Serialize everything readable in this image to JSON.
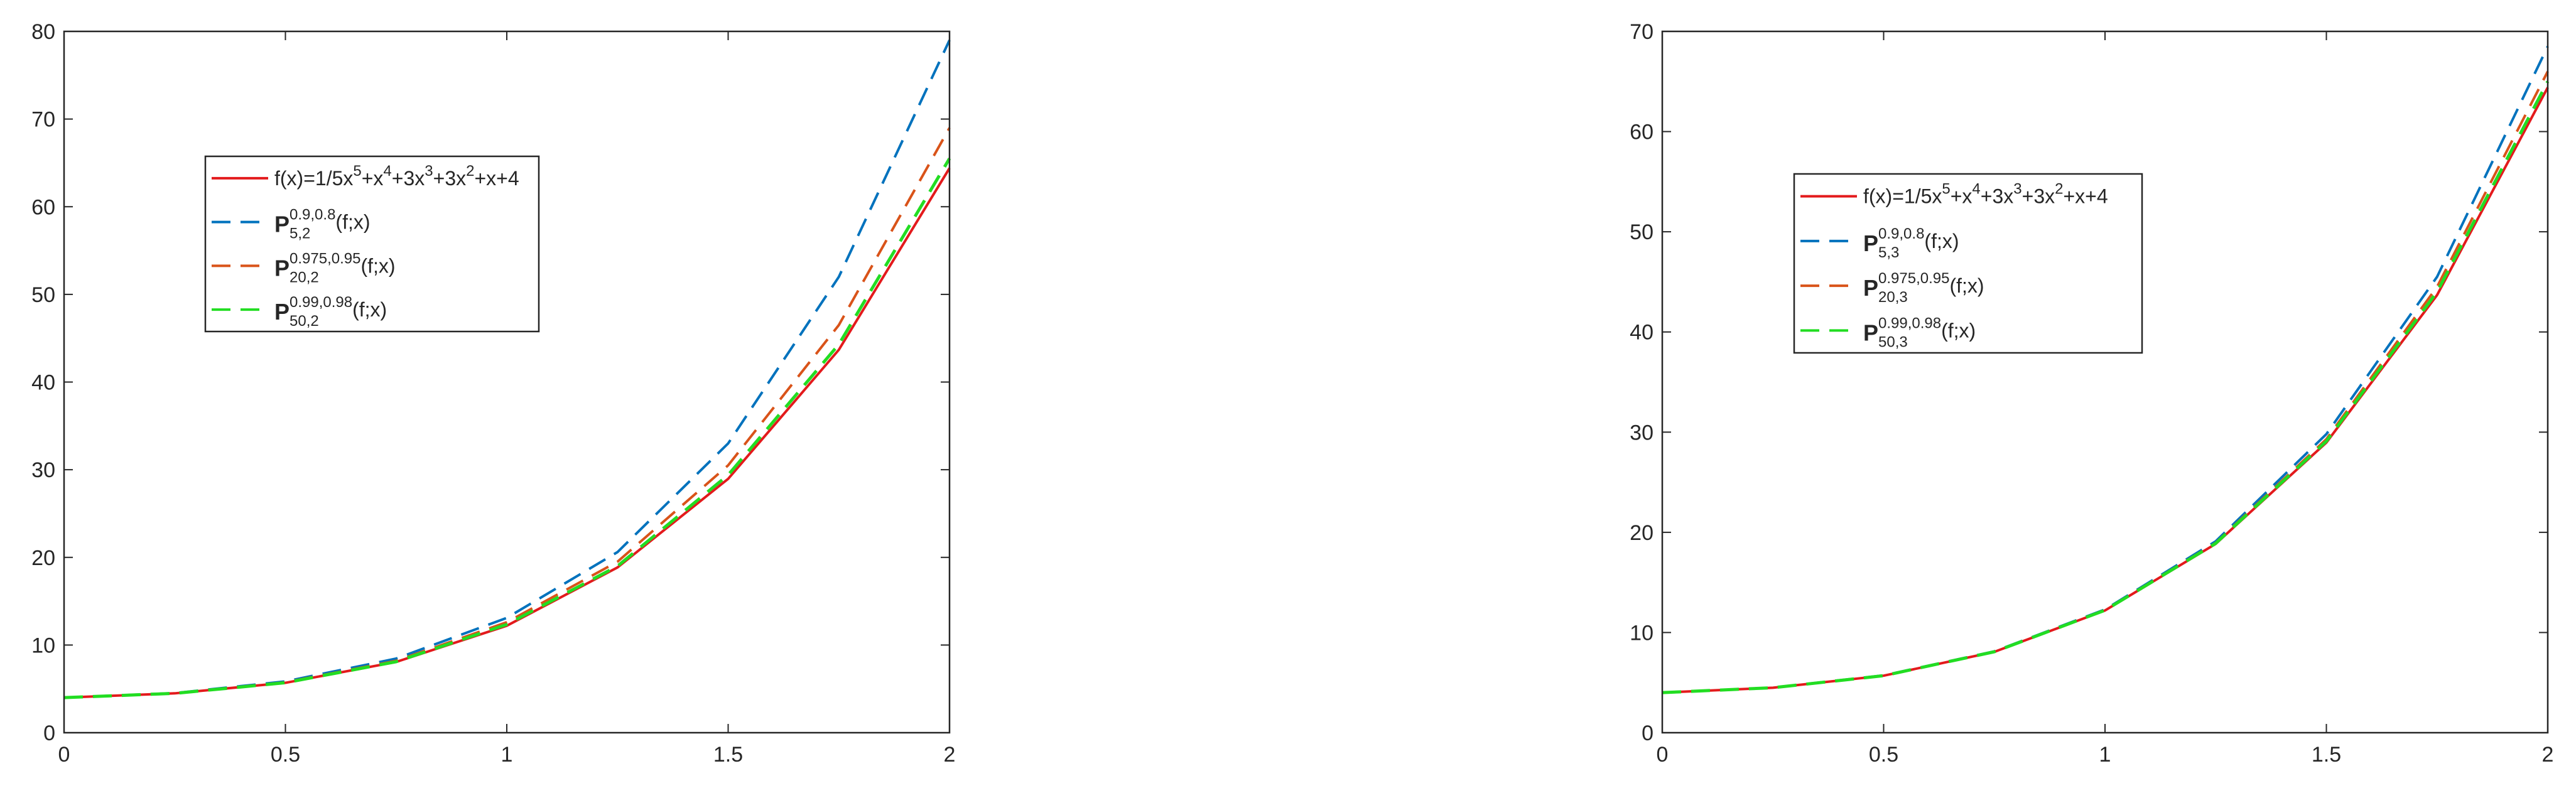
{
  "chart_data": [
    {
      "type": "line",
      "x": [
        0,
        0.25,
        0.5,
        0.75,
        1,
        1.25,
        1.5,
        1.75,
        2
      ],
      "xlim": [
        0,
        2
      ],
      "xticks": [
        0,
        0.5,
        1,
        1.5,
        2
      ],
      "ylim": [
        0,
        80
      ],
      "yticks": [
        0,
        10,
        20,
        30,
        40,
        50,
        60,
        70,
        80
      ],
      "series": [
        {
          "name": [
            {
              "text": "f(x)=1/5x"
            },
            {
              "sup": "5"
            },
            {
              "text": "+x"
            },
            {
              "sup": "4"
            },
            {
              "text": "+3x"
            },
            {
              "sup": "3"
            },
            {
              "text": "+3x"
            },
            {
              "sup": "2"
            },
            {
              "text": "+x+4"
            }
          ],
          "color": "#e31a1c",
          "style": "solid",
          "values": [
            4,
            4.49,
            5.69,
            8.07,
            12.2,
            18.85,
            28.96,
            43.68,
            64.4
          ]
        },
        {
          "name": [
            {
              "bold": "P"
            },
            {
              "sup": "0.9,0.8"
            },
            {
              "sub": "5,2"
            },
            {
              "text": "(f;x)"
            }
          ],
          "color": "#0072bd",
          "style": "dashed",
          "values": [
            4,
            4.52,
            5.85,
            8.45,
            13.1,
            20.6,
            33.0,
            52.0,
            79.0
          ]
        },
        {
          "name": [
            {
              "bold": "P"
            },
            {
              "sup": "0.975,0.95"
            },
            {
              "sub": "20,2"
            },
            {
              "text": "(f;x)"
            }
          ],
          "color": "#d95319",
          "style": "dashed",
          "values": [
            4,
            4.5,
            5.75,
            8.2,
            12.6,
            19.5,
            30.5,
            46.5,
            69.0
          ]
        },
        {
          "name": [
            {
              "bold": "P"
            },
            {
              "sup": "0.99,0.98"
            },
            {
              "sub": "50,2"
            },
            {
              "text": "(f;x)"
            }
          ],
          "color": "#22dd22",
          "style": "dashed",
          "values": [
            4,
            4.49,
            5.7,
            8.1,
            12.35,
            19.0,
            29.4,
            44.3,
            65.5
          ]
        }
      ]
    },
    {
      "type": "line",
      "x": [
        0,
        0.25,
        0.5,
        0.75,
        1,
        1.25,
        1.5,
        1.75,
        2
      ],
      "xlim": [
        0,
        2
      ],
      "xticks": [
        0,
        0.5,
        1,
        1.5,
        2
      ],
      "ylim": [
        0,
        70
      ],
      "yticks": [
        0,
        10,
        20,
        30,
        40,
        50,
        60,
        70
      ],
      "series": [
        {
          "name": [
            {
              "text": "f(x)=1/5x"
            },
            {
              "sup": "5"
            },
            {
              "text": "+x"
            },
            {
              "sup": "4"
            },
            {
              "text": "+3x"
            },
            {
              "sup": "3"
            },
            {
              "text": "+3x"
            },
            {
              "sup": "2"
            },
            {
              "text": "+x+4"
            }
          ],
          "color": "#e31a1c",
          "style": "solid",
          "values": [
            4,
            4.49,
            5.69,
            8.07,
            12.2,
            18.85,
            28.96,
            43.68,
            64.4
          ]
        },
        {
          "name": [
            {
              "bold": "P"
            },
            {
              "sup": "0.9,0.8"
            },
            {
              "sub": "5,3"
            },
            {
              "text": "(f;x)"
            }
          ],
          "color": "#0072bd",
          "style": "dashed",
          "values": [
            4,
            4.5,
            5.72,
            8.12,
            12.3,
            19.1,
            29.8,
            45.5,
            68.5
          ]
        },
        {
          "name": [
            {
              "bold": "P"
            },
            {
              "sup": "0.975,0.95"
            },
            {
              "sub": "20,3"
            },
            {
              "text": "(f;x)"
            }
          ],
          "color": "#d95319",
          "style": "dashed",
          "values": [
            4,
            4.49,
            5.7,
            8.09,
            12.25,
            18.95,
            29.3,
            44.5,
            66.0
          ]
        },
        {
          "name": [
            {
              "bold": "P"
            },
            {
              "sup": "0.99,0.98"
            },
            {
              "sub": "50,3"
            },
            {
              "text": "(f;x)"
            }
          ],
          "color": "#22dd22",
          "style": "dashed",
          "values": [
            4,
            4.49,
            5.69,
            8.08,
            12.22,
            18.9,
            29.1,
            44.0,
            65.0
          ]
        }
      ]
    }
  ]
}
